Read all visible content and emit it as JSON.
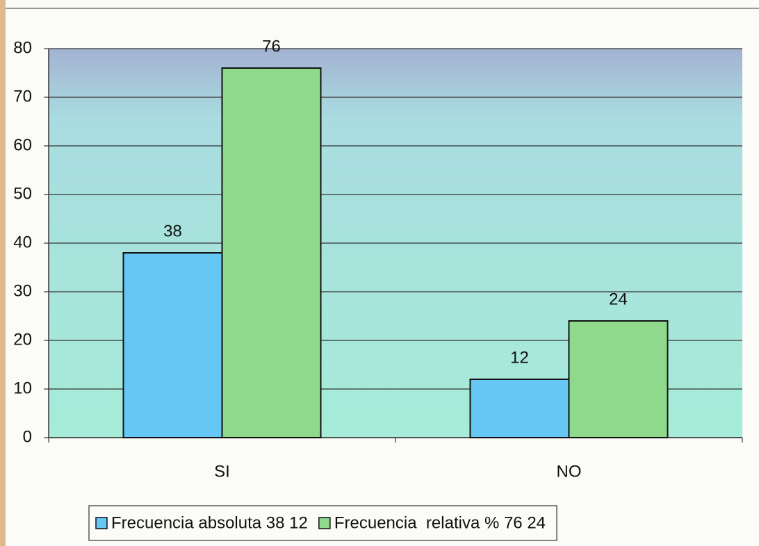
{
  "chart_data": {
    "type": "bar",
    "categories": [
      "SI",
      "NO"
    ],
    "series": [
      {
        "name": "Frecuencia absoluta 38 12",
        "color": "#66c6f4",
        "values": [
          38,
          12
        ]
      },
      {
        "name": "Frecuencia  relativa % 76 24",
        "color": "#8fd98c",
        "values": [
          76,
          24
        ]
      }
    ],
    "ylim": [
      0,
      80
    ],
    "yticks": [
      0,
      10,
      20,
      30,
      40,
      50,
      60,
      70,
      80
    ],
    "grid": true,
    "legend": "bottom"
  }
}
